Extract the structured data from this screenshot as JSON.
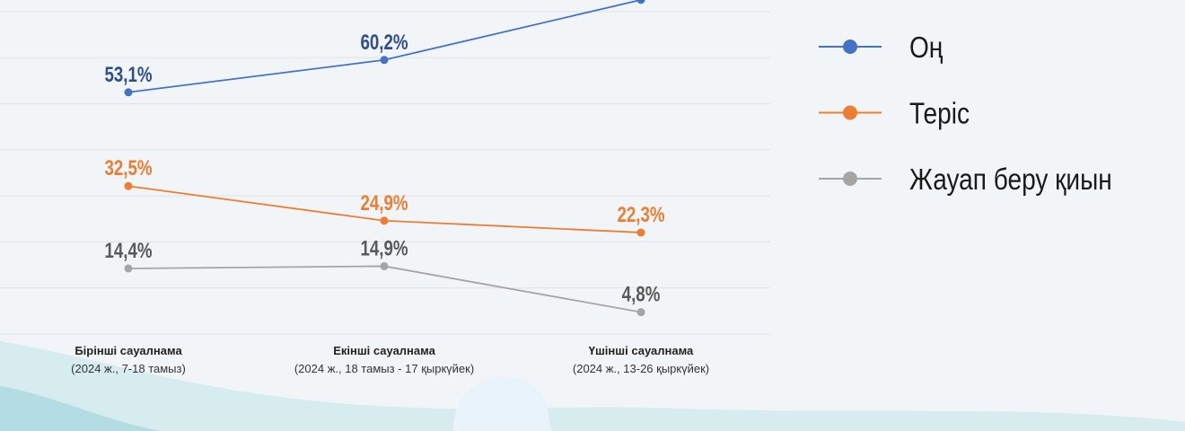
{
  "chart_data": {
    "type": "line",
    "title": "",
    "xlabel": "",
    "ylabel": "",
    "ylim": [
      0,
      73.4
    ],
    "grid": true,
    "legend_placement": "right",
    "categories": [
      {
        "name": "Бірінші сауалнама",
        "period": "(2024 ж., 7-18 тамыз)"
      },
      {
        "name": "Екінші сауалнама",
        "period": "(2024 ж., 18 тамыз - 17 қыркүйек)"
      },
      {
        "name": "Үшінші сауалнама",
        "period": "(2024 ж., 13-26 қыркүйек)"
      }
    ],
    "series": [
      {
        "name": "Оң",
        "color": "#4472c4",
        "label_color": "#2f4f8c",
        "values": [
          53.1,
          60.2,
          73.4
        ],
        "labels": [
          "53,1%",
          "60,2%",
          null
        ]
      },
      {
        "name": "Теріс",
        "color": "#ed7d31",
        "label_color": "#ed7d31",
        "values": [
          32.5,
          24.9,
          22.3
        ],
        "labels": [
          "32,5%",
          "24,9%",
          "22,3%"
        ]
      },
      {
        "name": "Жауап беру қиын",
        "color": "#a5a5a5",
        "label_color": "#595959",
        "values": [
          14.4,
          14.9,
          4.8
        ],
        "labels": [
          "14,4%",
          "14,9%",
          "4,8%"
        ]
      }
    ]
  }
}
